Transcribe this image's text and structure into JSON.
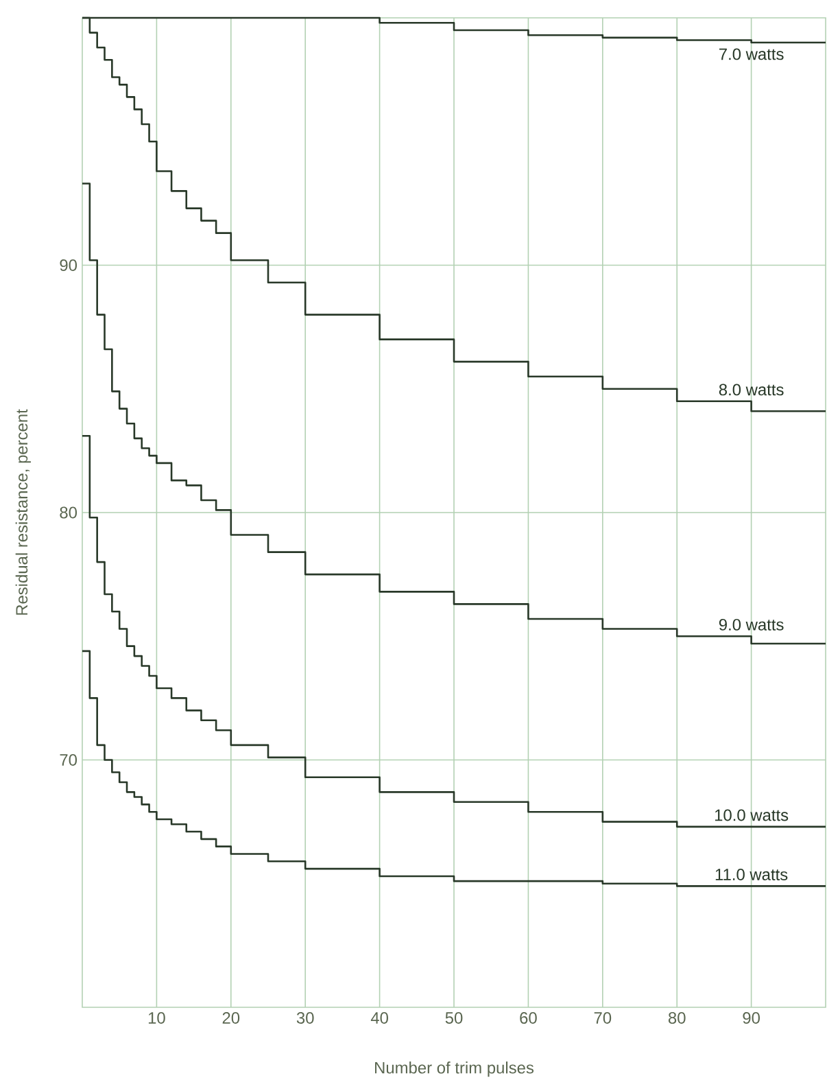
{
  "chart_data": {
    "type": "step",
    "xlabel": "Number of trim pulses",
    "ylabel": "Residual resistance, percent",
    "xlim": [
      0,
      100
    ],
    "ylim": [
      60,
      100
    ],
    "xticks": [
      10,
      20,
      30,
      40,
      50,
      60,
      70,
      80,
      90
    ],
    "yticks": [
      70,
      80,
      90
    ],
    "grid": true,
    "legend": false,
    "marker": "none",
    "line_style": "solid",
    "series": [
      {
        "name": "7.0 watts",
        "color": "#283828",
        "x": [
          0,
          40,
          50,
          60,
          70,
          80,
          90,
          100
        ],
        "values": [
          100,
          99.8,
          99.5,
          99.3,
          99.2,
          99.1,
          99.0,
          99.0
        ]
      },
      {
        "name": "8.0 watts",
        "color": "#283828",
        "x": [
          0,
          1,
          2,
          3,
          4,
          5,
          6,
          7,
          8,
          9,
          10,
          12,
          14,
          16,
          18,
          20,
          25,
          30,
          40,
          50,
          60,
          70,
          80,
          90,
          100
        ],
        "values": [
          100,
          99.4,
          98.8,
          98.3,
          97.6,
          97.3,
          96.8,
          96.3,
          95.7,
          95.0,
          93.8,
          93.0,
          92.3,
          91.8,
          91.3,
          90.2,
          89.3,
          88.0,
          87.0,
          86.1,
          85.5,
          85.0,
          84.5,
          84.1,
          84.1
        ]
      },
      {
        "name": "9.0 watts",
        "color": "#283828",
        "x": [
          0,
          1,
          2,
          3,
          4,
          5,
          6,
          7,
          8,
          9,
          10,
          12,
          14,
          16,
          18,
          20,
          25,
          30,
          40,
          50,
          60,
          70,
          80,
          90,
          100
        ],
        "values": [
          93.3,
          90.2,
          88.0,
          86.6,
          84.9,
          84.2,
          83.6,
          83.0,
          82.6,
          82.3,
          82.0,
          81.3,
          81.1,
          80.5,
          80.1,
          79.1,
          78.4,
          77.5,
          76.8,
          76.3,
          75.7,
          75.3,
          75.0,
          74.7,
          74.7
        ]
      },
      {
        "name": "10.0 watts",
        "color": "#283828",
        "x": [
          0,
          1,
          2,
          3,
          4,
          5,
          6,
          7,
          8,
          9,
          10,
          12,
          14,
          16,
          18,
          20,
          25,
          30,
          40,
          50,
          60,
          70,
          80,
          90,
          100
        ],
        "values": [
          83.1,
          79.8,
          78.0,
          76.7,
          76.0,
          75.3,
          74.6,
          74.2,
          73.8,
          73.4,
          72.9,
          72.5,
          72.0,
          71.6,
          71.2,
          70.6,
          70.1,
          69.3,
          68.7,
          68.3,
          67.9,
          67.5,
          67.3,
          67.3,
          67.3
        ]
      },
      {
        "name": "11.0 watts",
        "color": "#283828",
        "x": [
          0,
          1,
          2,
          3,
          4,
          5,
          6,
          7,
          8,
          9,
          10,
          12,
          14,
          16,
          18,
          20,
          25,
          30,
          40,
          50,
          60,
          70,
          80,
          90,
          100
        ],
        "values": [
          74.4,
          72.5,
          70.6,
          70.0,
          69.5,
          69.1,
          68.7,
          68.5,
          68.2,
          67.9,
          67.6,
          67.4,
          67.1,
          66.8,
          66.5,
          66.2,
          65.9,
          65.6,
          65.3,
          65.1,
          65.1,
          65.0,
          64.9,
          64.9,
          64.9
        ]
      }
    ]
  }
}
